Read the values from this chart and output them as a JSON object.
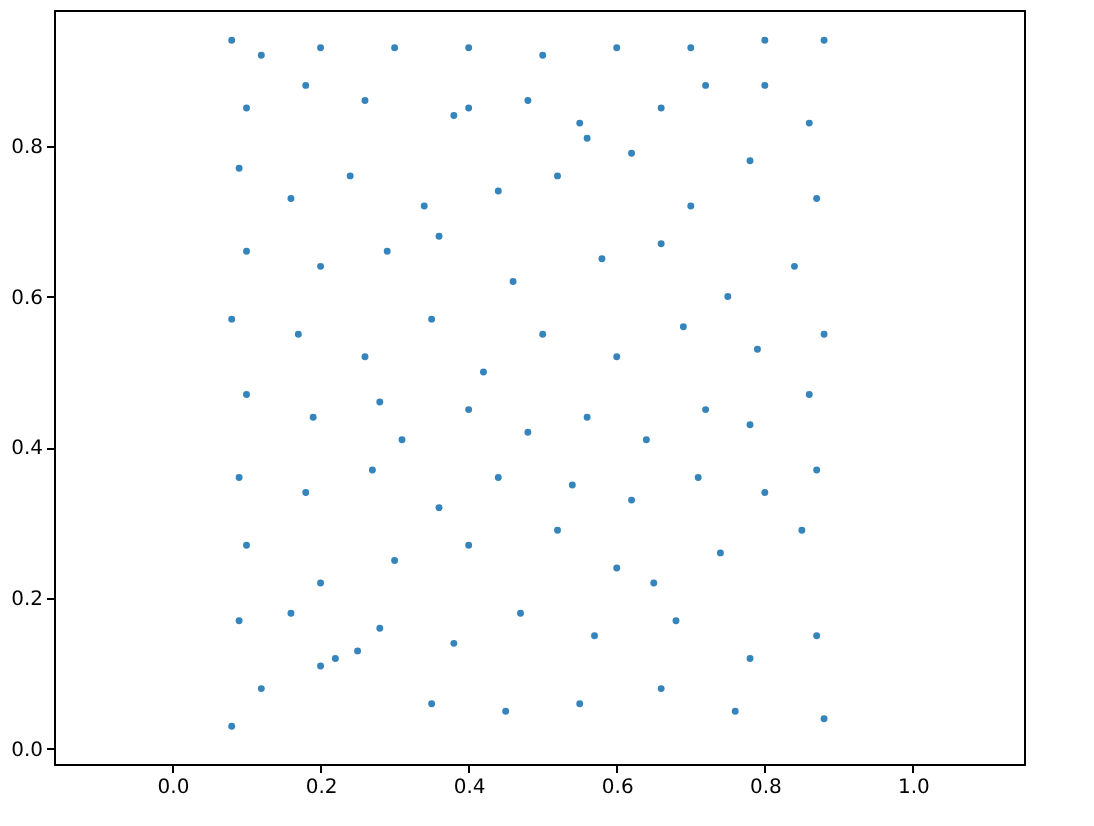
{
  "chart_data": {
    "type": "scatter",
    "x": [
      0.08,
      0.12,
      0.2,
      0.3,
      0.4,
      0.5,
      0.6,
      0.7,
      0.8,
      0.88,
      0.1,
      0.18,
      0.26,
      0.38,
      0.4,
      0.48,
      0.55,
      0.56,
      0.66,
      0.72,
      0.8,
      0.86,
      0.09,
      0.16,
      0.24,
      0.34,
      0.44,
      0.52,
      0.62,
      0.7,
      0.78,
      0.87,
      0.1,
      0.2,
      0.29,
      0.36,
      0.46,
      0.58,
      0.66,
      0.75,
      0.84,
      0.08,
      0.17,
      0.26,
      0.35,
      0.42,
      0.5,
      0.6,
      0.69,
      0.79,
      0.88,
      0.1,
      0.19,
      0.28,
      0.31,
      0.4,
      0.48,
      0.56,
      0.64,
      0.72,
      0.78,
      0.86,
      0.09,
      0.18,
      0.27,
      0.36,
      0.44,
      0.54,
      0.62,
      0.71,
      0.8,
      0.87,
      0.1,
      0.2,
      0.3,
      0.4,
      0.52,
      0.6,
      0.65,
      0.74,
      0.85,
      0.09,
      0.16,
      0.28,
      0.38,
      0.47,
      0.57,
      0.68,
      0.78,
      0.87,
      0.08,
      0.12,
      0.2,
      0.22,
      0.25,
      0.35,
      0.45,
      0.55,
      0.66,
      0.76,
      0.88
    ],
    "values": [
      0.94,
      0.92,
      0.93,
      0.93,
      0.93,
      0.92,
      0.93,
      0.93,
      0.94,
      0.94,
      0.85,
      0.88,
      0.86,
      0.84,
      0.85,
      0.86,
      0.83,
      0.81,
      0.85,
      0.88,
      0.88,
      0.83,
      0.77,
      0.73,
      0.76,
      0.72,
      0.74,
      0.76,
      0.79,
      0.72,
      0.78,
      0.73,
      0.66,
      0.64,
      0.66,
      0.68,
      0.62,
      0.65,
      0.67,
      0.6,
      0.64,
      0.57,
      0.55,
      0.52,
      0.57,
      0.5,
      0.55,
      0.52,
      0.56,
      0.53,
      0.55,
      0.47,
      0.44,
      0.46,
      0.41,
      0.45,
      0.42,
      0.44,
      0.41,
      0.45,
      0.43,
      0.47,
      0.36,
      0.34,
      0.37,
      0.32,
      0.36,
      0.35,
      0.33,
      0.36,
      0.34,
      0.37,
      0.27,
      0.22,
      0.25,
      0.27,
      0.29,
      0.24,
      0.22,
      0.26,
      0.29,
      0.17,
      0.18,
      0.16,
      0.14,
      0.18,
      0.15,
      0.17,
      0.12,
      0.15,
      0.03,
      0.08,
      0.11,
      0.12,
      0.13,
      0.06,
      0.05,
      0.06,
      0.08,
      0.05,
      0.04
    ],
    "color": "#1f77b4",
    "grid": false,
    "xlim": [
      -0.16,
      1.15
    ],
    "ylim": [
      -0.02,
      0.98
    ],
    "xticks": [
      {
        "value": 0,
        "label": "0.0"
      },
      {
        "value": 0.2,
        "label": "0.2"
      },
      {
        "value": 0.4,
        "label": "0.4"
      },
      {
        "value": 0.6,
        "label": "0.6"
      },
      {
        "value": 0.8,
        "label": "0.8"
      },
      {
        "value": 1,
        "label": "1.0"
      }
    ],
    "yticks": [
      {
        "value": 0,
        "label": "0.0"
      },
      {
        "value": 0.2,
        "label": "0.2"
      },
      {
        "value": 0.4,
        "label": "0.4"
      },
      {
        "value": 0.6,
        "label": "0.6"
      },
      {
        "value": 0.8,
        "label": "0.8"
      }
    ]
  }
}
